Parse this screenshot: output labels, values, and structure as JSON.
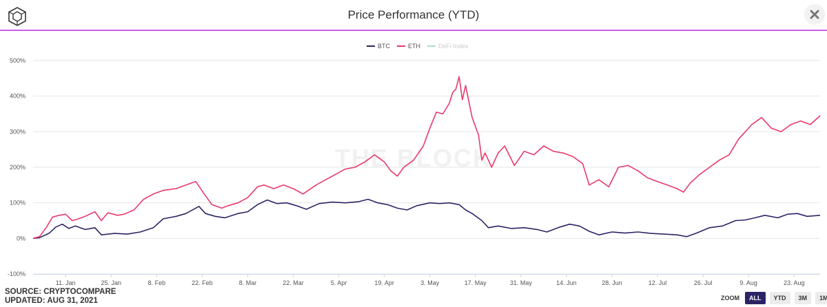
{
  "header": {
    "title": "Price Performance (YTD)",
    "logo_icon": "cube-logo-icon",
    "close_icon": "close-icon"
  },
  "legend": [
    {
      "name": "BTC",
      "color": "#2b2464",
      "active": true
    },
    {
      "name": "ETH",
      "color": "#e8396b",
      "active": true
    },
    {
      "name": "DeFi Index",
      "color": "#a8ddd6",
      "active": false
    }
  ],
  "watermark": "THE BLOCK",
  "footer": {
    "source": "SOURCE: CRYPTOCOMPARE",
    "updated": "UPDATED: AUG 31, 2021"
  },
  "zoom": {
    "label": "ZOOM",
    "buttons": [
      "ALL",
      "YTD",
      "3M",
      "1M"
    ],
    "active": "ALL"
  },
  "chart_data": {
    "type": "line",
    "title": "Price Performance (YTD)",
    "ylabel": "",
    "ylim": [
      -100,
      500
    ],
    "yticks": [
      -100,
      0,
      100,
      200,
      300,
      400,
      500
    ],
    "ytick_labels": [
      "-100%",
      "0%",
      "100%",
      "200%",
      "300%",
      "400%",
      "500%"
    ],
    "xlim": [
      "2021-01-01",
      "2021-08-31"
    ],
    "xticks": [
      "2021-01-11",
      "2021-01-25",
      "2021-02-08",
      "2021-02-22",
      "2021-03-08",
      "2021-03-22",
      "2021-04-05",
      "2021-04-19",
      "2021-05-03",
      "2021-05-17",
      "2021-05-31",
      "2021-06-14",
      "2021-06-28",
      "2021-07-12",
      "2021-07-26",
      "2021-08-09",
      "2021-08-23"
    ],
    "xtick_labels": [
      "11. Jan",
      "25. Jan",
      "8. Feb",
      "22. Feb",
      "8. Mar",
      "22. Mar",
      "5. Apr",
      "19. Apr",
      "3. May",
      "17. May",
      "31. May",
      "14. Jun",
      "28. Jun",
      "12. Jul",
      "26. Jul",
      "9. Aug",
      "23. Aug"
    ],
    "grid": "horizontal",
    "series": [
      {
        "name": "BTC",
        "color": "#2b2464",
        "points": [
          [
            "2021-01-01",
            0
          ],
          [
            "2021-01-03",
            2
          ],
          [
            "2021-01-06",
            15
          ],
          [
            "2021-01-08",
            32
          ],
          [
            "2021-01-10",
            40
          ],
          [
            "2021-01-12",
            28
          ],
          [
            "2021-01-14",
            35
          ],
          [
            "2021-01-17",
            25
          ],
          [
            "2021-01-20",
            30
          ],
          [
            "2021-01-22",
            10
          ],
          [
            "2021-01-26",
            14
          ],
          [
            "2021-01-30",
            12
          ],
          [
            "2021-02-03",
            18
          ],
          [
            "2021-02-07",
            30
          ],
          [
            "2021-02-10",
            55
          ],
          [
            "2021-02-14",
            62
          ],
          [
            "2021-02-17",
            70
          ],
          [
            "2021-02-21",
            90
          ],
          [
            "2021-02-23",
            70
          ],
          [
            "2021-02-26",
            62
          ],
          [
            "2021-03-01",
            58
          ],
          [
            "2021-03-05",
            70
          ],
          [
            "2021-03-08",
            75
          ],
          [
            "2021-03-11",
            95
          ],
          [
            "2021-03-14",
            108
          ],
          [
            "2021-03-17",
            98
          ],
          [
            "2021-03-20",
            100
          ],
          [
            "2021-03-23",
            92
          ],
          [
            "2021-03-26",
            82
          ],
          [
            "2021-03-30",
            98
          ],
          [
            "2021-04-03",
            102
          ],
          [
            "2021-04-07",
            100
          ],
          [
            "2021-04-11",
            103
          ],
          [
            "2021-04-14,",
            110
          ],
          [
            "2021-04-17",
            100
          ],
          [
            "2021-04-20",
            95
          ],
          [
            "2021-04-23",
            85
          ],
          [
            "2021-04-26",
            80
          ],
          [
            "2021-04-29",
            92
          ],
          [
            "2021-05-03",
            100
          ],
          [
            "2021-05-06",
            98
          ],
          [
            "2021-05-09",
            100
          ],
          [
            "2021-05-12",
            95
          ],
          [
            "2021-05-14",
            80
          ],
          [
            "2021-05-16",
            70
          ],
          [
            "2021-05-19",
            50
          ],
          [
            "2021-05-21",
            30
          ],
          [
            "2021-05-24",
            35
          ],
          [
            "2021-05-28",
            28
          ],
          [
            "2021-06-01",
            30
          ],
          [
            "2021-06-05",
            25
          ],
          [
            "2021-06-08",
            18
          ],
          [
            "2021-06-12",
            32
          ],
          [
            "2021-06-15",
            40
          ],
          [
            "2021-06-18",
            35
          ],
          [
            "2021-06-21",
            20
          ],
          [
            "2021-06-24",
            10
          ],
          [
            "2021-06-28",
            18
          ],
          [
            "2021-07-02",
            15
          ],
          [
            "2021-07-06",
            18
          ],
          [
            "2021-07-10",
            14
          ],
          [
            "2021-07-14",
            12
          ],
          [
            "2021-07-18",
            10
          ],
          [
            "2021-07-21",
            5
          ],
          [
            "2021-07-24",
            15
          ],
          [
            "2021-07-28",
            30
          ],
          [
            "2021-08-01",
            35
          ],
          [
            "2021-08-05",
            50
          ],
          [
            "2021-08-08",
            52
          ],
          [
            "2021-08-11",
            58
          ],
          [
            "2021-08-14",
            65
          ],
          [
            "2021-08-18",
            58
          ],
          [
            "2021-08-21",
            68
          ],
          [
            "2021-08-24",
            70
          ],
          [
            "2021-08-27",
            62
          ],
          [
            "2021-08-31",
            65
          ]
        ]
      },
      {
        "name": "ETH",
        "color": "#e8396b",
        "points": [
          [
            "2021-01-01",
            0
          ],
          [
            "2021-01-03",
            5
          ],
          [
            "2021-01-05",
            30
          ],
          [
            "2021-01-07",
            60
          ],
          [
            "2021-01-09",
            65
          ],
          [
            "2021-01-11",
            68
          ],
          [
            "2021-01-13",
            50
          ],
          [
            "2021-01-15",
            55
          ],
          [
            "2021-01-17",
            62
          ],
          [
            "2021-01-20",
            75
          ],
          [
            "2021-01-22",
            50
          ],
          [
            "2021-01-24",
            72
          ],
          [
            "2021-01-27",
            65
          ],
          [
            "2021-01-29",
            68
          ],
          [
            "2021-02-01",
            80
          ],
          [
            "2021-02-04",
            110
          ],
          [
            "2021-02-07",
            125
          ],
          [
            "2021-02-10",
            135
          ],
          [
            "2021-02-14",
            140
          ],
          [
            "2021-02-17",
            150
          ],
          [
            "2021-02-20",
            160
          ],
          [
            "2021-02-23",
            120
          ],
          [
            "2021-02-25",
            95
          ],
          [
            "2021-02-28",
            85
          ],
          [
            "2021-03-02",
            92
          ],
          [
            "2021-03-05",
            100
          ],
          [
            "2021-03-08",
            115
          ],
          [
            "2021-03-11",
            145
          ],
          [
            "2021-03-13,",
            150
          ],
          [
            "2021-03-16",
            140
          ],
          [
            "2021-03-19",
            150
          ],
          [
            "2021-03-22",
            140
          ],
          [
            "2021-03-25",
            125
          ],
          [
            "2021-03-29",
            150
          ],
          [
            "2021-04-01",
            165
          ],
          [
            "2021-04-04",
            180
          ],
          [
            "2021-04-07",
            195
          ],
          [
            "2021-04-10",
            200
          ],
          [
            "2021-04-13",
            215
          ],
          [
            "2021-04-16",
            235
          ],
          [
            "2021-04-19",
            215
          ],
          [
            "2021-04-21",
            190
          ],
          [
            "2021-04-23",
            175
          ],
          [
            "2021-04-25",
            200
          ],
          [
            "2021-04-28",
            220
          ],
          [
            "2021-05-01",
            260
          ],
          [
            "2021-05-03",
            310
          ],
          [
            "2021-05-05",
            355
          ],
          [
            "2021-05-07",
            350
          ],
          [
            "2021-05-09",
            380
          ],
          [
            "2021-05-10",
            410
          ],
          [
            "2021-05-11",
            420
          ],
          [
            "2021-05-12",
            455
          ],
          [
            "2021-05-13",
            390
          ],
          [
            "2021-05-14,",
            430
          ],
          [
            "2021-05-16",
            340
          ],
          [
            "2021-05-18",
            290
          ],
          [
            "2021-05-19",
            220
          ],
          [
            "2021-05-20",
            240
          ],
          [
            "2021-05-22",
            200
          ],
          [
            "2021-05-24",
            240
          ],
          [
            "2021-05-26",
            260
          ],
          [
            "2021-05-29",
            205
          ],
          [
            "2021-06-01",
            245
          ],
          [
            "2021-06-04",
            235
          ],
          [
            "2021-06-07",
            260
          ],
          [
            "2021-06-10",
            245
          ],
          [
            "2021-06-13",
            240
          ],
          [
            "2021-06-16",
            230
          ],
          [
            "2021-06-19",
            210
          ],
          [
            "2021-06-21",
            150
          ],
          [
            "2021-06-24",
            165
          ],
          [
            "2021-06-27",
            145
          ],
          [
            "2021-06-30",
            200
          ],
          [
            "2021-07-03",
            205
          ],
          [
            "2021-07-06",
            190
          ],
          [
            "2021-07-09",
            170
          ],
          [
            "2021-07-12",
            160
          ],
          [
            "2021-07-15",
            150
          ],
          [
            "2021-07-18",
            140
          ],
          [
            "2021-07-20",
            130
          ],
          [
            "2021-07-22",
            155
          ],
          [
            "2021-07-25",
            180
          ],
          [
            "2021-07-28",
            200
          ],
          [
            "2021-07-31",
            220
          ],
          [
            "2021-08-03",
            235
          ],
          [
            "2021-08-06",
            280
          ],
          [
            "2021-08-08",
            300
          ],
          [
            "2021-08-10",
            320
          ],
          [
            "2021-08-13",
            340
          ],
          [
            "2021-08-16",
            310
          ],
          [
            "2021-08-19",
            300
          ],
          [
            "2021-08-22",
            320
          ],
          [
            "2021-08-25",
            330
          ],
          [
            "2021-08-28",
            320
          ],
          [
            "2021-08-31",
            345
          ]
        ]
      },
      {
        "name": "DeFi Index",
        "color": "#a8ddd6",
        "hidden": true,
        "points": []
      }
    ]
  }
}
